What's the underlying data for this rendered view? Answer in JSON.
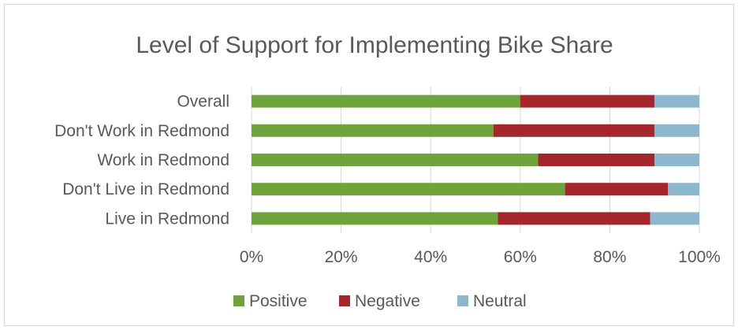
{
  "chart_data": {
    "type": "bar",
    "orientation": "horizontal",
    "stacked": "100%",
    "title": "Level of Support for Implementing Bike Share",
    "xlabel": "",
    "ylabel": "",
    "categories": [
      "Overall",
      "Don't Work in Redmond",
      "Work in Redmond",
      "Don't Live in Redmond",
      "Live in Redmond"
    ],
    "series": [
      {
        "name": "Positive",
        "color": "#70a33c",
        "values": [
          60,
          54,
          64,
          70,
          55
        ]
      },
      {
        "name": "Negative",
        "color": "#a5272b",
        "values": [
          30,
          36,
          26,
          23,
          34
        ]
      },
      {
        "name": "Neutral",
        "color": "#8db7cd",
        "values": [
          10,
          10,
          10,
          7,
          11
        ]
      }
    ],
    "xlim": [
      0,
      100
    ],
    "x_ticks": [
      "0%",
      "20%",
      "40%",
      "60%",
      "80%",
      "100%"
    ],
    "grid": true,
    "legend_position": "bottom"
  }
}
